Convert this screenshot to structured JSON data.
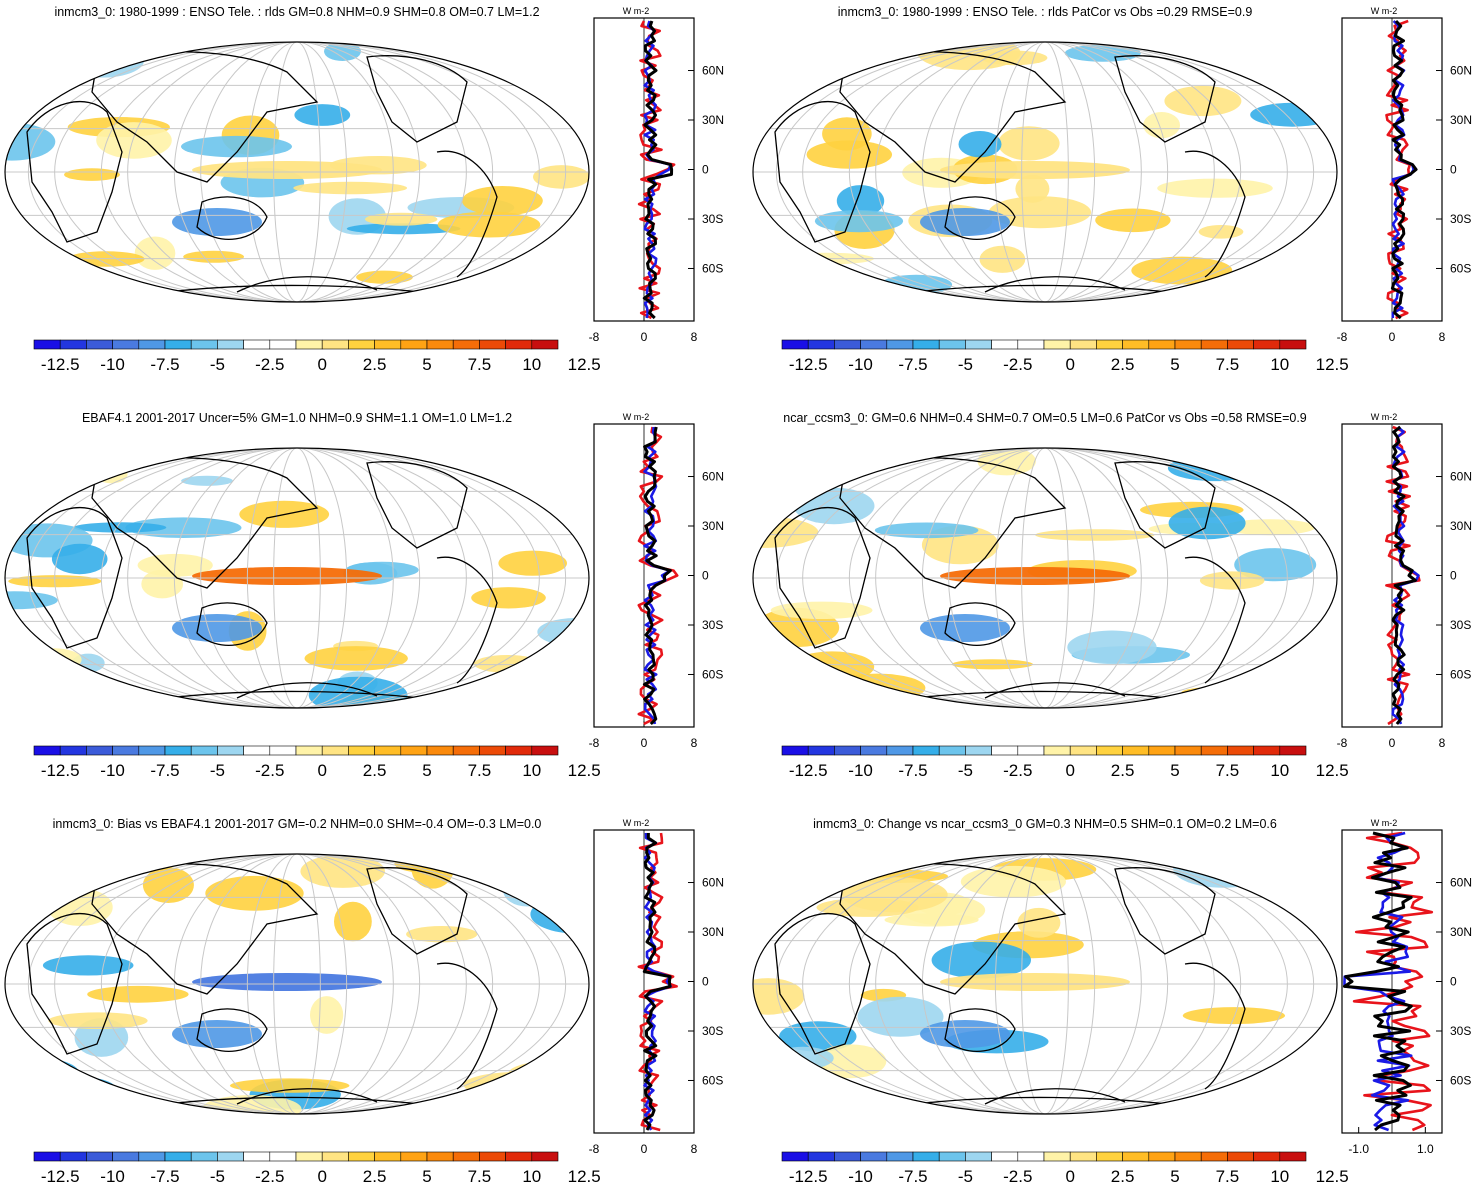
{
  "colorbar": {
    "labels": [
      "-12.5",
      "-10",
      "-7.5",
      "-5",
      "-2.5",
      "0",
      "2.5",
      "5",
      "7.5",
      "10",
      "12.5"
    ],
    "colors": [
      "#1a0fe6",
      "#2336e0",
      "#3b5bd9",
      "#4a7ae0",
      "#4f98e6",
      "#35aee9",
      "#6cc4ec",
      "#9dd6f0",
      "#ffffff",
      "#ffffff",
      "#fff3a8",
      "#ffe483",
      "#ffd23f",
      "#ffbd26",
      "#ffa314",
      "#fb8a0c",
      "#f56d08",
      "#ec4a07",
      "#e12a0a",
      "#c80f0f"
    ]
  },
  "profile_units": "W m-2",
  "profile_lat_labels": [
    "60N",
    "30N",
    "0",
    "30S",
    "60S"
  ],
  "chart_data": [
    {
      "type": "map",
      "panel": "top-left",
      "title": "inmcm3_0: 1980-1999 : ENSO Tele. : rlds GM=0.8 NHM=0.9 SHM=0.8 OM=0.7 LM=1.2",
      "profile_xticks": [
        "-8",
        "0",
        "8"
      ],
      "profile_xlim": [
        -8,
        8
      ]
    },
    {
      "type": "map",
      "panel": "top-right",
      "title": "inmcm3_0: 1980-1999 : ENSO Tele. : rlds PatCor vs Obs =0.29 RMSE=0.9",
      "profile_xticks": [
        "-8",
        "0",
        "8"
      ],
      "profile_xlim": [
        -8,
        8
      ]
    },
    {
      "type": "map",
      "panel": "middle-left",
      "title": "EBAF4.1 2001-2017 Uncer=5% GM=1.0 NHM=0.9 SHM=1.1 OM=1.0 LM=1.2",
      "profile_xticks": [
        "-8",
        "0",
        "8"
      ],
      "profile_xlim": [
        -8,
        8
      ]
    },
    {
      "type": "map",
      "panel": "middle-right",
      "title": "ncar_ccsm3_0: GM=0.6 NHM=0.4 SHM=0.7 OM=0.5 LM=0.6 PatCor vs Obs =0.58 RMSE=0.9",
      "profile_xticks": [
        "-8",
        "0",
        "8"
      ],
      "profile_xlim": [
        -8,
        8
      ]
    },
    {
      "type": "map",
      "panel": "bottom-left",
      "title": "inmcm3_0: Bias vs EBAF4.1 2001-2017 GM=-0.2 NHM=0.0 SHM=-0.4 OM=-0.3 LM=0.0",
      "profile_xticks": [
        "-8",
        "0",
        "8"
      ],
      "profile_xlim": [
        -8,
        8
      ]
    },
    {
      "type": "map",
      "panel": "bottom-right",
      "title": "inmcm3_0: Change vs ncar_ccsm3_0 GM=0.3 NHM=0.5 SHM=0.1 OM=0.2 LM=0.6",
      "profile_xticks": [
        "-1.0",
        "1.0"
      ],
      "profile_xlim": [
        -1.5,
        1.5
      ]
    }
  ]
}
